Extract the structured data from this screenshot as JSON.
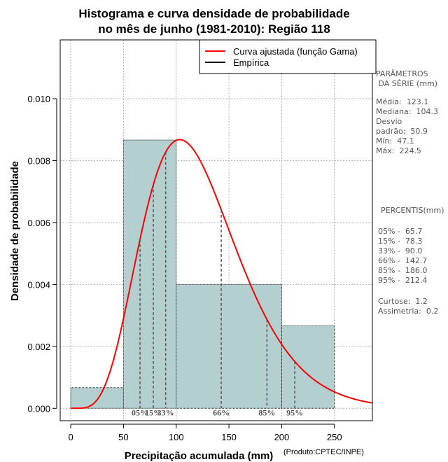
{
  "chart_data": {
    "type": "histogram",
    "title": [
      "Histograma e curva densidade de probabilidade",
      "no mês de junho (1981-2010): Região 118"
    ],
    "xlabel": "Precipitação acumulada (mm)",
    "ylabel": "Densidade de probabilidade",
    "xlim": [
      -10,
      286
    ],
    "ylim": [
      -0.0004,
      0.0119
    ],
    "x_ticks": [
      0,
      50,
      100,
      150,
      200,
      250
    ],
    "x_tick_labels": [
      "0",
      "50",
      "100",
      "150",
      "200",
      "250"
    ],
    "y_ticks": [
      0.0,
      0.002,
      0.004,
      0.006,
      0.008,
      0.01
    ],
    "y_tick_labels": [
      "0.000",
      "0.002",
      "0.004",
      "0.006",
      "0.008",
      "0.010"
    ],
    "grid": true,
    "bins": [
      {
        "from": 0,
        "to": 50,
        "density": 0.000667
      },
      {
        "from": 50,
        "to": 100,
        "density": 0.008667
      },
      {
        "from": 100,
        "to": 200,
        "density": 0.004
      },
      {
        "from": 200,
        "to": 250,
        "density": 0.002667
      }
    ],
    "gamma_fit": {
      "shape": 6.22,
      "scale": 19.8
    },
    "percentiles": [
      {
        "label": "05%",
        "value": 65.7
      },
      {
        "label": "15%",
        "value": 78.3
      },
      {
        "label": "33%",
        "value": 90.0
      },
      {
        "label": "66%",
        "value": 142.7
      },
      {
        "label": "85%",
        "value": 186.0
      },
      {
        "label": "95%",
        "value": 212.4
      }
    ],
    "legend": [
      {
        "label": "Curva ajustada (função Gama)",
        "color": "#ff0000"
      },
      {
        "label": "Empírica",
        "color": "#000000"
      }
    ],
    "colors": {
      "bar_fill": "#b4cfcf",
      "curve": "#ff0000",
      "percentile_line": "#555555",
      "grid": "#b0b0b0"
    }
  },
  "side_panel": {
    "params_title": "PARÂMETROS\n DA SÉRIE (mm)",
    "params": "Média:  123.1\nMediana:  104.3\nDesvio\npadrão:  50.9\nMín:  47.1\nMáx:  224.5",
    "percentis_title": "PERCENTIS(mm)",
    "percentis": "05% -  65.7\n15% -  78.3\n33% -  90.0\n66% -  142.7\n85% -  186.0\n95% -  212.4",
    "stats": "Curtose:  1.2\nAssimetria:  0.2"
  },
  "credit": "(Produto:CPTEC/INPE)"
}
